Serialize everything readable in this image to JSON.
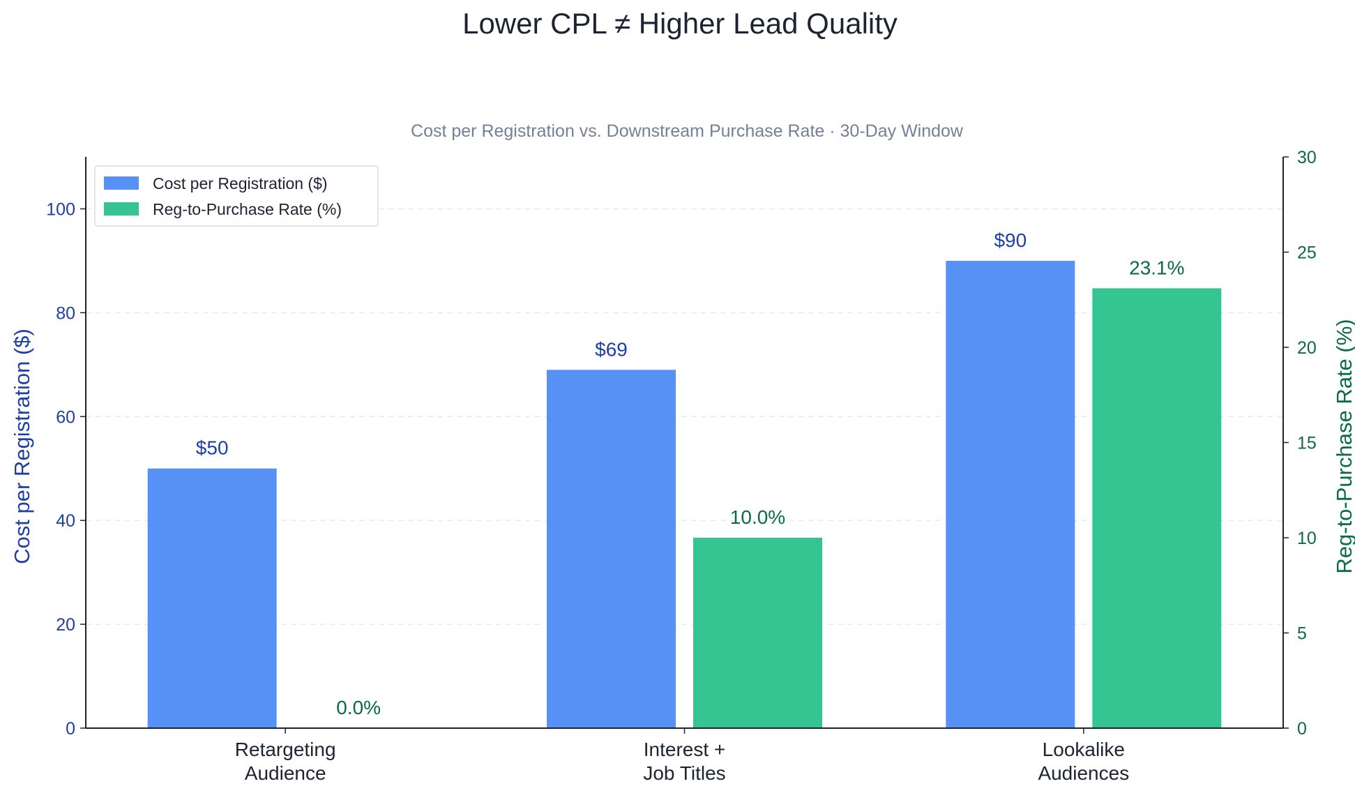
{
  "chart_data": {
    "type": "bar",
    "title": "Lower CPL ≠ Higher Lead Quality",
    "subtitle": "Cost per Registration vs. Downstream Purchase Rate  ·  30-Day Window",
    "categories": [
      [
        "Retargeting",
        "Audience"
      ],
      [
        "Interest +",
        "Job Titles"
      ],
      [
        "Lookalike",
        "Audiences"
      ]
    ],
    "series": [
      {
        "name": "Cost per Registration ($)",
        "axis": "left",
        "color": "#5891f5",
        "values": [
          50,
          69,
          90
        ],
        "labels": [
          "$50",
          "$69",
          "$90"
        ]
      },
      {
        "name": "Reg-to-Purchase Rate (%)",
        "axis": "right",
        "color": "#35c592",
        "values": [
          0.0,
          10.0,
          23.1
        ],
        "labels": [
          "0.0%",
          "10.0%",
          "23.1%"
        ]
      }
    ],
    "y_left": {
      "label": "Cost per Registration ($)",
      "range": [
        0,
        110
      ],
      "ticks": [
        0,
        20,
        40,
        60,
        80,
        100
      ],
      "color": "#1f3fa3"
    },
    "y_right": {
      "label": "Reg-to-Purchase Rate (%)",
      "range": [
        0,
        30
      ],
      "ticks": [
        0,
        5,
        10,
        15,
        20,
        25,
        30
      ],
      "color": "#0b6b45"
    },
    "grid": "horizontal dashed",
    "legend_position": "top-left"
  }
}
